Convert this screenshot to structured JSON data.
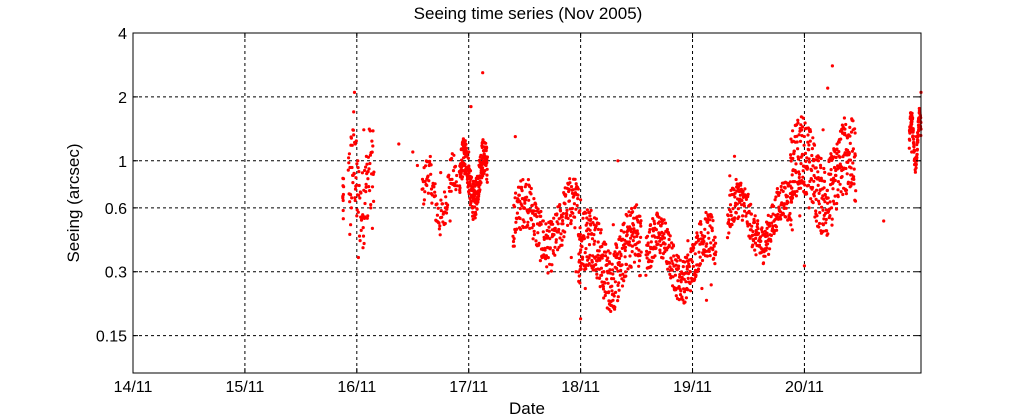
{
  "chart_data": {
    "type": "scatter",
    "title": "Seeing time series (Nov 2005)",
    "xlabel": "Date",
    "ylabel": "Seeing (arcsec)",
    "x_ticks": [
      "14/11",
      "15/11",
      "16/11",
      "17/11",
      "18/11",
      "19/11",
      "20/11"
    ],
    "xlim": [
      "2005-11-14",
      "2005-11-21 01:00"
    ],
    "y_scale": "log",
    "y_ticks": [
      "0.15",
      "0.3",
      "0.6",
      "1",
      "2",
      "4"
    ],
    "ylim": [
      0.1,
      4
    ],
    "grid": true,
    "marker_color": "#ff0000",
    "series": [
      {
        "points": [
          [
            "2005-11-15 21:00",
            0.68
          ],
          [
            "2005-11-15 21:05",
            0.65
          ],
          [
            "2005-11-15 22:30",
            0.45
          ],
          [
            "2005-11-15 22:40",
            0.5
          ],
          [
            "2005-11-15 22:50",
            0.6
          ],
          [
            "2005-11-15 23:10",
            1.4
          ],
          [
            "2005-11-15 23:20",
            1.7
          ],
          [
            "2005-11-15 23:30",
            2.1
          ],
          [
            "2005-11-15 23:40",
            1.2
          ],
          [
            "2005-11-16 00:00",
            0.55
          ],
          [
            "2005-11-16 00:20",
            0.35
          ],
          [
            "2005-11-16 01:30",
            1.4
          ],
          [
            "2005-11-16 01:40",
            0.9
          ],
          [
            "2005-11-16 02:00",
            0.75
          ],
          [
            "2005-11-16 02:20",
            0.55
          ],
          [
            "2005-11-16 03:00",
            0.6
          ],
          [
            "2005-11-16 03:20",
            0.48
          ],
          [
            "2005-11-16 09:00",
            1.2
          ],
          [
            "2005-11-16 12:00",
            1.1
          ],
          [
            "2005-11-16 13:00",
            0.95
          ],
          [
            "2005-11-16 15:00",
            0.82
          ],
          [
            "2005-11-16 16:00",
            0.7
          ],
          [
            "2005-11-16 17:00",
            0.62
          ],
          [
            "2005-11-16 18:00",
            0.88
          ],
          [
            "2005-11-16 19:00",
            0.6
          ],
          [
            "2005-11-16 20:00",
            0.52
          ],
          [
            "2005-11-16 21:00",
            0.78
          ],
          [
            "2005-11-16 23:00",
            0.95
          ],
          [
            "2005-11-17 00:00",
            1.1
          ],
          [
            "2005-11-17 01:00",
            0.8
          ],
          [
            "2005-11-17 02:00",
            0.7
          ],
          [
            "2005-11-17 03:00",
            0.85
          ],
          [
            "2005-11-17 00:30",
            1.8
          ],
          [
            "2005-11-17 03:00",
            2.6
          ],
          [
            "2005-11-17 10:00",
            1.3
          ],
          [
            "2005-11-17 11:00",
            0.75
          ],
          [
            "2005-11-17 12:00",
            0.65
          ],
          [
            "2005-11-17 14:00",
            0.58
          ],
          [
            "2005-11-17 16:00",
            0.52
          ],
          [
            "2005-11-17 18:00",
            0.45
          ],
          [
            "2005-11-17 20:00",
            0.4
          ],
          [
            "2005-11-17 22:00",
            0.35
          ],
          [
            "2005-11-17 23:00",
            0.3
          ],
          [
            "2005-11-18 00:00",
            0.18
          ],
          [
            "2005-11-18 01:00",
            0.25
          ],
          [
            "2005-11-18 02:00",
            0.55
          ],
          [
            "2005-11-18 03:00",
            0.35
          ],
          [
            "2005-11-18 04:00",
            0.28
          ],
          [
            "2005-11-18 05:00",
            0.3
          ],
          [
            "2005-11-18 07:00",
            0.5
          ],
          [
            "2005-11-18 08:00",
            1.0
          ],
          [
            "2005-11-18 10:00",
            0.55
          ],
          [
            "2005-11-18 12:00",
            0.62
          ],
          [
            "2005-11-18 15:00",
            0.5
          ],
          [
            "2005-11-18 17:00",
            0.45
          ],
          [
            "2005-11-18 19:00",
            0.4
          ],
          [
            "2005-11-18 21:00",
            0.35
          ],
          [
            "2005-11-18 23:00",
            0.42
          ],
          [
            "2005-11-19 01:00",
            0.3
          ],
          [
            "2005-11-19 02:00",
            0.25
          ],
          [
            "2005-11-19 03:00",
            0.22
          ],
          [
            "2005-11-19 04:00",
            0.26
          ],
          [
            "2005-11-19 08:00",
            0.85
          ],
          [
            "2005-11-19 09:00",
            1.05
          ],
          [
            "2005-11-19 10:00",
            0.65
          ],
          [
            "2005-11-19 12:00",
            0.5
          ],
          [
            "2005-11-19 14:00",
            0.45
          ],
          [
            "2005-11-19 16:00",
            0.48
          ],
          [
            "2005-11-19 18:00",
            0.55
          ],
          [
            "2005-11-19 19:00",
            0.62
          ],
          [
            "2005-11-19 21:00",
            0.7
          ],
          [
            "2005-11-19 22:00",
            0.9
          ],
          [
            "2005-11-19 23:00",
            0.55
          ],
          [
            "2005-11-20 00:00",
            0.32
          ],
          [
            "2005-11-20 01:00",
            0.6
          ],
          [
            "2005-11-20 02:00",
            0.8
          ],
          [
            "2005-11-20 03:00",
            1.0
          ],
          [
            "2005-11-20 04:00",
            1.4
          ],
          [
            "2005-11-20 05:00",
            2.2
          ],
          [
            "2005-11-20 06:00",
            2.8
          ],
          [
            "2005-11-20 07:00",
            1.2
          ],
          [
            "2005-11-20 08:00",
            0.9
          ],
          [
            "2005-11-20 09:00",
            0.7
          ],
          [
            "2005-11-20 17:00",
            0.52
          ],
          [
            "2005-11-20 23:00",
            1.1
          ],
          [
            "2005-11-21 00:00",
            1.3
          ],
          [
            "2005-11-21 00:30",
            1.4
          ],
          [
            "2005-11-21 01:00",
            2.1
          ]
        ]
      }
    ],
    "clusters": [
      {
        "start": "2005-11-15 21:00",
        "end": "2005-11-15 21:10",
        "center": 0.66,
        "spread": 0.04,
        "count": 8
      },
      {
        "start": "2005-11-15 22:10",
        "end": "2005-11-16 03:40",
        "center": 0.75,
        "spread": 0.45,
        "count": 90
      },
      {
        "start": "2005-11-16 14:00",
        "end": "2005-11-16 21:30",
        "center": 0.68,
        "spread": 0.22,
        "count": 90
      },
      {
        "start": "2005-11-16 22:00",
        "end": "2005-11-17 04:00",
        "center": 0.82,
        "spread": 0.2,
        "count": 260
      },
      {
        "start": "2005-11-17 09:30",
        "end": "2005-11-18 00:00",
        "center": 0.5,
        "spread": 0.28,
        "count": 260
      },
      {
        "start": "2005-11-17 23:30",
        "end": "2005-11-18 13:00",
        "center": 0.35,
        "spread": 0.35,
        "count": 320
      },
      {
        "start": "2005-11-18 14:00",
        "end": "2005-11-19 05:00",
        "center": 0.35,
        "spread": 0.25,
        "count": 300
      },
      {
        "start": "2005-11-19 07:30",
        "end": "2005-11-19 21:30",
        "center": 0.52,
        "spread": 0.22,
        "count": 260
      },
      {
        "start": "2005-11-19 21:00",
        "end": "2005-11-20 11:00",
        "center": 0.85,
        "spread": 0.42,
        "count": 340
      },
      {
        "start": "2005-11-20 22:30",
        "end": "2005-11-21 01:00",
        "center": 1.25,
        "spread": 0.1,
        "count": 120
      }
    ]
  }
}
